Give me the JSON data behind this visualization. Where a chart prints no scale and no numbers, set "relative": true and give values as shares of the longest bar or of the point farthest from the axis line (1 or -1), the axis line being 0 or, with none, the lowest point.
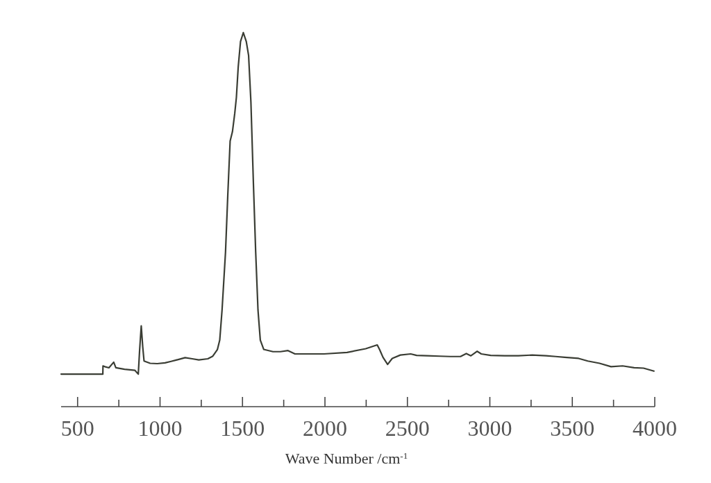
{
  "chart_data": {
    "type": "line",
    "xlabel": "Wave Number /cm$^{-1}$",
    "relative": true,
    "color": "#3a3d34",
    "xlim": [
      400,
      4000
    ],
    "xticks": [
      500,
      {
        "value": 750,
        "label": null
      },
      1000,
      {
        "value": 1250,
        "label": null
      },
      1500,
      {
        "value": 1750,
        "label": null
      },
      2000,
      {
        "value": 2250,
        "label": null
      },
      2500,
      {
        "value": 2750,
        "label": null
      },
      3000,
      {
        "value": 3250,
        "label": null
      },
      3500,
      {
        "value": 3750,
        "label": null
      },
      4000
    ],
    "x": [
      400,
      653,
      654,
      665,
      690,
      719,
      732,
      785,
      848,
      868,
      876,
      886,
      895,
      903,
      940,
      983,
      1030,
      1067,
      1110,
      1152,
      1195,
      1235,
      1290,
      1320,
      1348,
      1362,
      1376,
      1397,
      1411,
      1425,
      1439,
      1453,
      1463,
      1474,
      1488,
      1505,
      1523,
      1537,
      1551,
      1566,
      1580,
      1594,
      1608,
      1629,
      1685,
      1730,
      1776,
      1818,
      1900,
      1994,
      2134,
      2247,
      2317,
      2331,
      2352,
      2380,
      2408,
      2457,
      2520,
      2556,
      2620,
      2696,
      2760,
      2822,
      2857,
      2885,
      2923,
      2948,
      3005,
      3090,
      3173,
      3257,
      3341,
      3400,
      3454,
      3538,
      3594,
      3665,
      3735,
      3805,
      3875,
      3932,
      3995
    ],
    "values": [
      0.087,
      0.087,
      0.109,
      0.107,
      0.104,
      0.119,
      0.104,
      0.1,
      0.097,
      0.087,
      0.15,
      0.216,
      0.16,
      0.122,
      0.116,
      0.115,
      0.117,
      0.121,
      0.126,
      0.131,
      0.128,
      0.125,
      0.128,
      0.135,
      0.153,
      0.178,
      0.258,
      0.413,
      0.568,
      0.71,
      0.735,
      0.784,
      0.827,
      0.908,
      0.976,
      1.0,
      0.976,
      0.939,
      0.815,
      0.599,
      0.413,
      0.258,
      0.178,
      0.153,
      0.147,
      0.147,
      0.15,
      0.141,
      0.141,
      0.141,
      0.145,
      0.155,
      0.165,
      0.153,
      0.132,
      0.113,
      0.129,
      0.138,
      0.141,
      0.137,
      0.136,
      0.135,
      0.134,
      0.134,
      0.142,
      0.136,
      0.148,
      0.141,
      0.137,
      0.136,
      0.136,
      0.138,
      0.136,
      0.134,
      0.132,
      0.129,
      0.122,
      0.116,
      0.107,
      0.109,
      0.104,
      0.103,
      0.095
    ]
  }
}
